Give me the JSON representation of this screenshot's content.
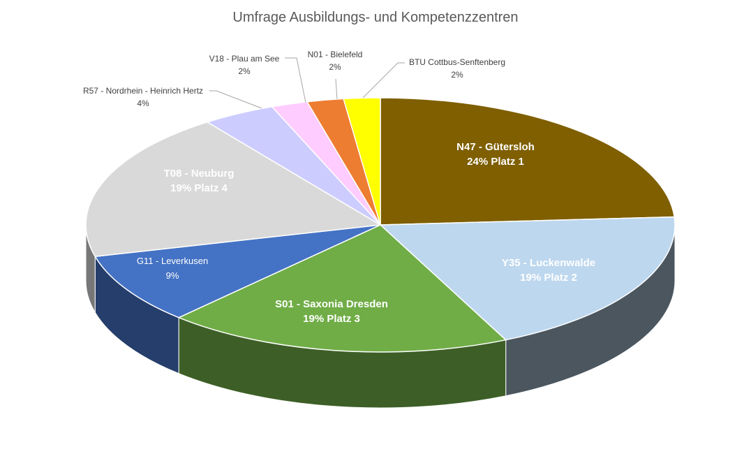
{
  "chart_data": {
    "type": "pie",
    "title": "Umfrage Ausbildungs- und Kompetenzzentren",
    "slices": [
      {
        "name": "N47 - Gütersloh",
        "value": 24,
        "label2": "24% Platz 1",
        "color": "#7F5F00"
      },
      {
        "name": "Y35 - Luckenwalde",
        "value": 19,
        "label2": "19% Platz 2",
        "color": "#BDD7EE"
      },
      {
        "name": "S01 - Saxonia Dresden",
        "value": 19,
        "label2": "19% Platz 3",
        "color": "#70AD47"
      },
      {
        "name": "G11 - Leverkusen",
        "value": 9,
        "label2": "9%",
        "color": "#4472C4"
      },
      {
        "name": "T08 - Neuburg",
        "value": 19,
        "label2": "19% Platz 4",
        "color": "#D9D9D9"
      },
      {
        "name": "R57 - Nordrhein - Heinrich Hertz",
        "value": 4,
        "label2": "4%",
        "color": "#CCCCFF"
      },
      {
        "name": "V18 - Plau am See",
        "value": 2,
        "label2": "2%",
        "color": "#FFCCFF"
      },
      {
        "name": "N01 - Bielefeld",
        "value": 2,
        "label2": "2%",
        "color": "#ED7D31"
      },
      {
        "name": "BTU Cottbus-Senftenberg",
        "value": 2,
        "label2": "2%",
        "color": "#FFFF00"
      }
    ]
  }
}
